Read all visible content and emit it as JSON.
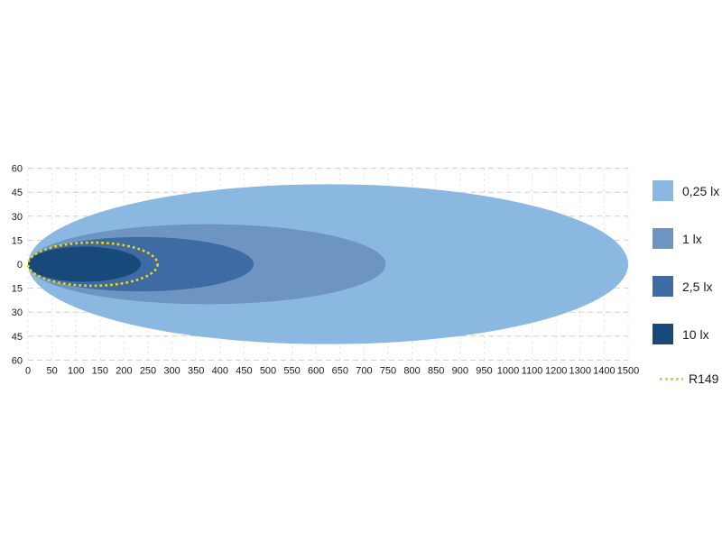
{
  "chart_data": {
    "type": "area",
    "subtype": "isolux-beam-pattern-contours",
    "title": "",
    "xlabel": "",
    "ylabel": "",
    "grid": true,
    "x_ticks": [
      0,
      50,
      100,
      150,
      200,
      250,
      300,
      350,
      400,
      450,
      500,
      550,
      600,
      650,
      700,
      750,
      800,
      850,
      900,
      950,
      1000,
      1100,
      1200,
      1300,
      1400,
      1500
    ],
    "x_scale_note": "ticks equally spaced; 50 per tick up to 1000, 100 per tick from 1000 to 1500",
    "y_ticks": [
      "60",
      "45",
      "30",
      "15",
      "0",
      "15",
      "30",
      "45",
      "60"
    ],
    "y_range_each_side": 60,
    "series": [
      {
        "name": "0,25 lx",
        "color": "#8bb8e0",
        "reach": 1500,
        "half_width": 50
      },
      {
        "name": "1 lx",
        "color": "#6e94c1",
        "reach": 745,
        "half_width": 25
      },
      {
        "name": "2,5 lx",
        "color": "#3e6ba3",
        "reach": 470,
        "half_width": 17
      },
      {
        "name": "10 lx",
        "color": "#17497b",
        "reach": 235,
        "half_width": 11
      }
    ],
    "reference": {
      "name": "R149",
      "color": "#f0dc00",
      "legend_color": "#e5cb4a",
      "reach": 270,
      "half_width": 13.5,
      "style": "dotted"
    },
    "colors": {
      "grid_horizontal": "#cfcfcf",
      "grid_vertical": "#dedede",
      "tick_label": "#1a1a1a"
    },
    "legend_position": "right"
  },
  "legend": {
    "items": [
      {
        "label": "0,25 lx"
      },
      {
        "label": "1 lx"
      },
      {
        "label": "2,5 lx"
      },
      {
        "label": "10 lx"
      }
    ],
    "reference_label": "R149"
  }
}
